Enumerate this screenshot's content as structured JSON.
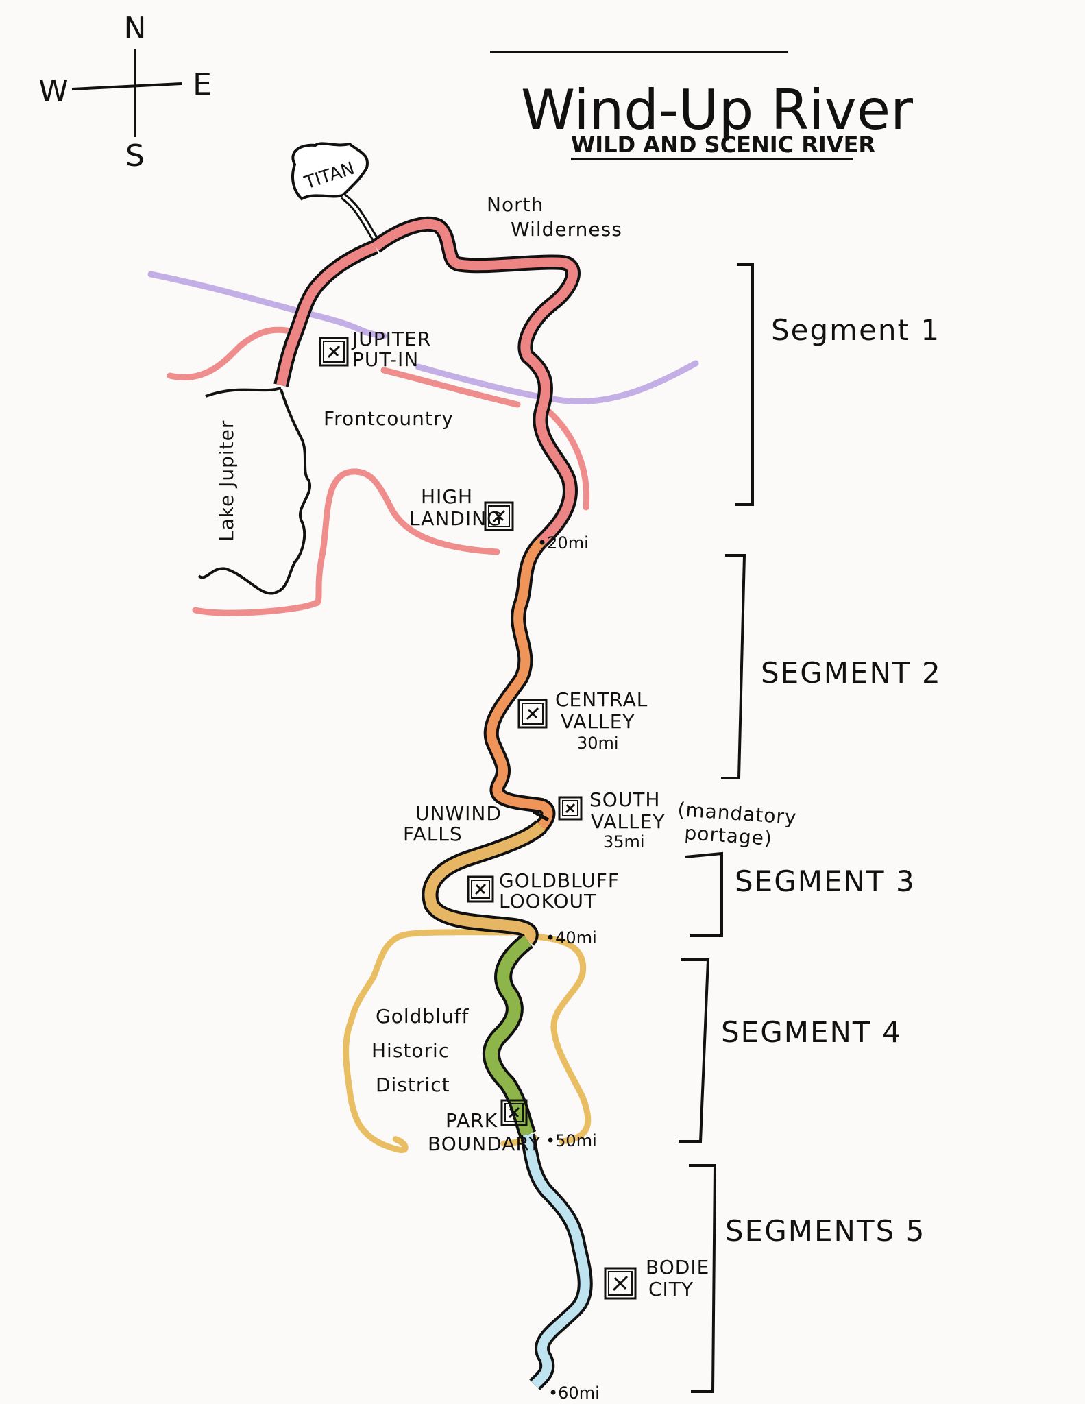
{
  "title": "Wind-Up River",
  "subtitle": "WILD AND SCENIC RIVER",
  "compass": {
    "n": "N",
    "s": "S",
    "e": "E",
    "w": "W"
  },
  "places": {
    "titan": "TITAN",
    "north_wilderness_1": "North",
    "north_wilderness_2": "Wilderness",
    "frontcountry": "Frontcountry",
    "lake_jupiter": "Lake Jupiter",
    "goldbluff_1": "Goldbluff",
    "goldbluff_2": "Historic",
    "goldbluff_3": "District"
  },
  "access_points": [
    {
      "line1": "JUPITER",
      "line2": "PUT-IN",
      "line3": ""
    },
    {
      "line1": "HIGH",
      "line2": "LANDING",
      "line3": ""
    },
    {
      "line1": "CENTRAL",
      "line2": "VALLEY",
      "line3": "30mi"
    },
    {
      "line1": "SOUTH",
      "line2": "VALLEY",
      "line3": "35mi"
    },
    {
      "line1": "GOLDBLUFF",
      "line2": "LOOKOUT",
      "line3": ""
    },
    {
      "line1": "PARK",
      "line2": "BOUNDARY",
      "line3": ""
    },
    {
      "line1": "BODIE",
      "line2": "CITY",
      "line3": ""
    }
  ],
  "falls": {
    "line1": "UNWIND",
    "line2": "FALLS",
    "note1": "(mandatory",
    "note2": "portage)"
  },
  "miles": {
    "m20": "•20mi",
    "m40": "•40mi",
    "m50": "•50mi",
    "m60": "•60mi"
  },
  "segments": [
    "Segment 1",
    "SEGMENT 2",
    "SEGMENT 3",
    "SEGMENT 4",
    "SEGMENTS 5"
  ],
  "colors": {
    "segment1": "#ec8583",
    "segment2": "#f0955a",
    "segment3": "#e6b664",
    "segment4": "#8eb549",
    "segment5": "#bfe4ef",
    "road_purple": "#c4aee6",
    "road_pink": "#ef8c8c",
    "road_gold": "#e9be63"
  }
}
